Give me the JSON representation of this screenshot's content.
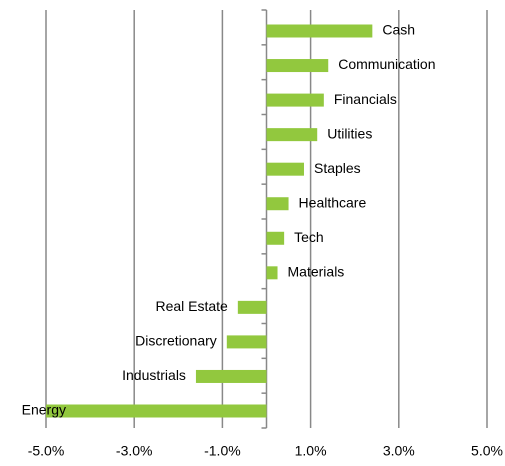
{
  "chart_data": {
    "type": "bar",
    "orientation": "horizontal",
    "categories": [
      "Cash",
      "Communication",
      "Financials",
      "Utilities",
      "Staples",
      "Healthcare",
      "Tech",
      "Materials",
      "Real Estate",
      "Discretionary",
      "Industrials",
      "Energy"
    ],
    "values": [
      2.4,
      1.4,
      1.3,
      1.15,
      0.85,
      0.5,
      0.4,
      0.25,
      -0.65,
      -0.9,
      -1.6,
      -5.0
    ],
    "color": "#92c83e",
    "xlim": [
      -5,
      5
    ],
    "xticks": [
      {
        "value": -5,
        "label": "-5.0%"
      },
      {
        "value": -3,
        "label": "-3.0%"
      },
      {
        "value": -1,
        "label": "-1.0%"
      },
      {
        "value": 1,
        "label": "1.0%"
      },
      {
        "value": 3,
        "label": "3.0%"
      },
      {
        "value": 5,
        "label": "5.0%"
      }
    ],
    "grid": true
  }
}
